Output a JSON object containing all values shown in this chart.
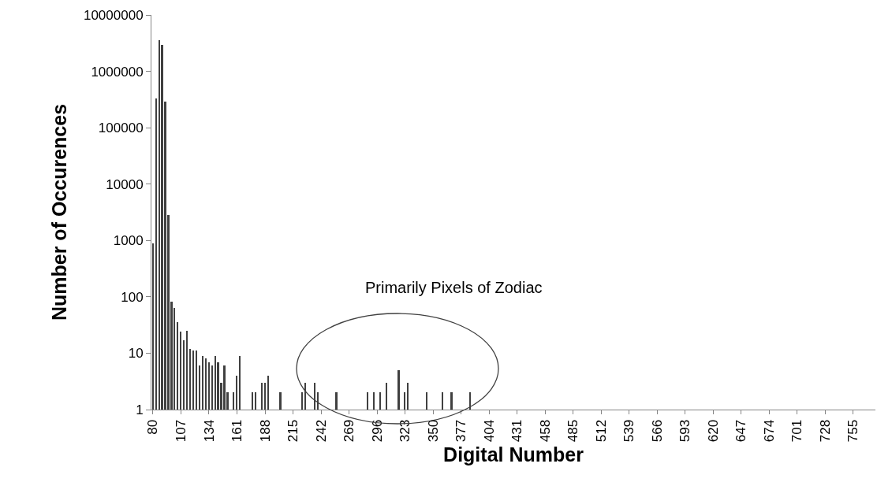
{
  "chart_data": {
    "type": "bar",
    "xlabel": "Digital Number",
    "ylabel": "Number of Occurences",
    "annotations": [
      "Primarily Pixels of Zodiac"
    ],
    "x": [
      80,
      83,
      86,
      89,
      92,
      95,
      98,
      101,
      104,
      107,
      110,
      113,
      116,
      119,
      122,
      125,
      128,
      131,
      134,
      137,
      140,
      143,
      146,
      149,
      152,
      158,
      161,
      164,
      176,
      179,
      185,
      188,
      191,
      203,
      224,
      227,
      236,
      239,
      257,
      287,
      293,
      299,
      305,
      317,
      323,
      326,
      344,
      359,
      368,
      386
    ],
    "values": [
      900,
      330000,
      3600000,
      2900000,
      290000,
      2800,
      83,
      64,
      35,
      24,
      17,
      25,
      12,
      11,
      11,
      6,
      9,
      8,
      7,
      6,
      9,
      7,
      3,
      6,
      2,
      2,
      4,
      9,
      2,
      2,
      3,
      3,
      4,
      2,
      2,
      3,
      3,
      2,
      2,
      2,
      2,
      2,
      3,
      5,
      2,
      3,
      2,
      2,
      2,
      2
    ],
    "color": "#404040",
    "log": "y",
    "xlim": [
      78.5,
      776.5
    ],
    "xticks": [
      80,
      107,
      134,
      161,
      188,
      215,
      242,
      269,
      296,
      323,
      350,
      377,
      404,
      431,
      458,
      485,
      512,
      539,
      566,
      593,
      620,
      647,
      674,
      701,
      728,
      755
    ],
    "ylim": [
      1,
      10000000
    ],
    "yticks": [
      1,
      10,
      100,
      1000,
      10000,
      100000,
      1000000,
      10000000
    ]
  }
}
